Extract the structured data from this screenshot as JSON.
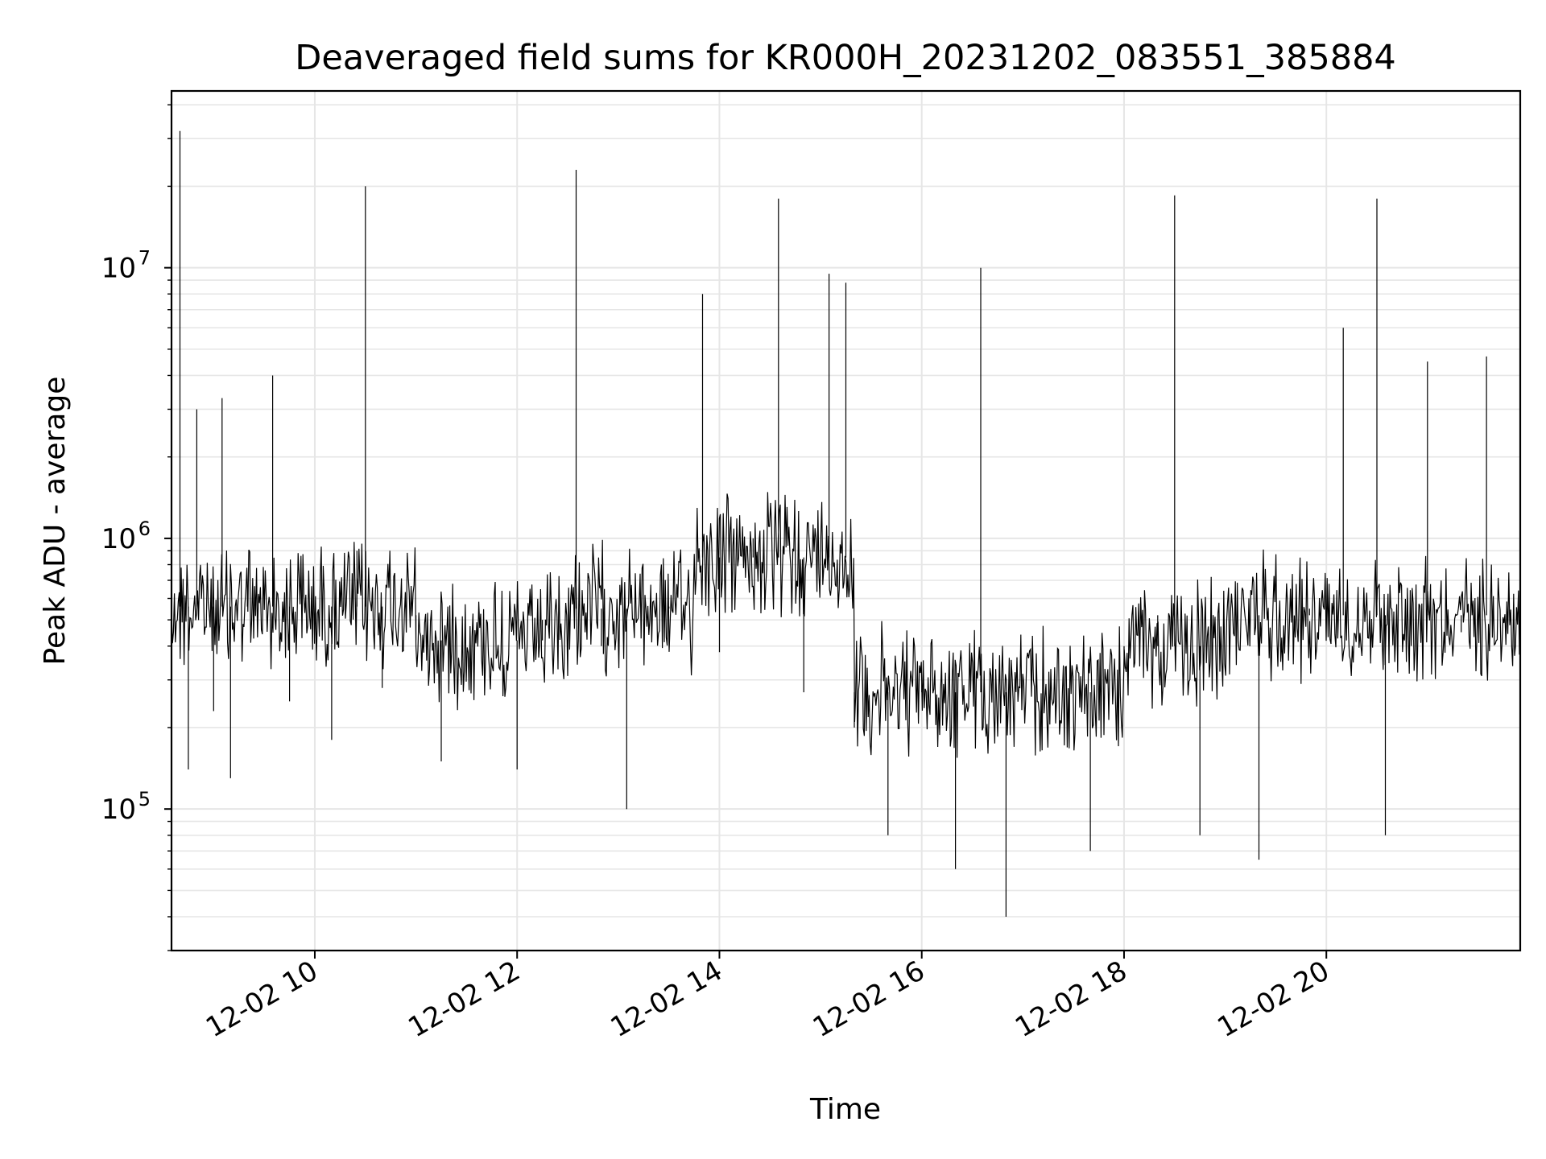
{
  "chart_data": {
    "type": "line",
    "title": "Deaveraged field sums for KR000H_20231202_083551_385884",
    "xlabel": "Time",
    "ylabel": "Peak ADU - average",
    "x_scale": "time",
    "y_scale": "log",
    "xlim": [
      "2023-12-02 08:35",
      "2023-12-02 21:55"
    ],
    "ylim": [
      30000,
      45000000
    ],
    "x_ticks": [
      {
        "time": "2023-12-02 10:00",
        "label": "12-02 10"
      },
      {
        "time": "2023-12-02 12:00",
        "label": "12-02 12"
      },
      {
        "time": "2023-12-02 14:00",
        "label": "12-02 14"
      },
      {
        "time": "2023-12-02 16:00",
        "label": "12-02 16"
      },
      {
        "time": "2023-12-02 18:00",
        "label": "12-02 18"
      },
      {
        "time": "2023-12-02 20:00",
        "label": "12-02 20"
      }
    ],
    "y_ticks": [
      {
        "value": 100000,
        "base": "10",
        "exp": "5"
      },
      {
        "value": 1000000,
        "base": "10",
        "exp": "6"
      },
      {
        "value": 10000000,
        "base": "10",
        "exp": "7"
      }
    ],
    "grid": true,
    "legend": "none",
    "series": [
      {
        "color": "#000000",
        "points": [
          [
            "2023-12-02 08:35",
            380000
          ],
          [
            "2023-12-02 08:40",
            32000000
          ],
          [
            "2023-12-02 08:45",
            140000
          ],
          [
            "2023-12-02 08:50",
            3000000
          ],
          [
            "2023-12-02 09:00",
            230000
          ],
          [
            "2023-12-02 09:05",
            3300000
          ],
          [
            "2023-12-02 09:10",
            130000
          ],
          [
            "2023-12-02 09:20",
            650000
          ],
          [
            "2023-12-02 09:35",
            4000000
          ],
          [
            "2023-12-02 09:45",
            250000
          ],
          [
            "2023-12-02 10:00",
            560000
          ],
          [
            "2023-12-02 10:10",
            180000
          ],
          [
            "2023-12-02 10:25",
            900000
          ],
          [
            "2023-12-02 10:30",
            20000000
          ],
          [
            "2023-12-02 10:40",
            280000
          ],
          [
            "2023-12-02 11:00",
            520000
          ],
          [
            "2023-12-02 11:15",
            150000
          ],
          [
            "2023-12-02 11:30",
            420000
          ],
          [
            "2023-12-02 12:00",
            140000
          ],
          [
            "2023-12-02 12:15",
            500000
          ],
          [
            "2023-12-02 12:35",
            23000000
          ],
          [
            "2023-12-02 12:50",
            400000
          ],
          [
            "2023-12-02 13:05",
            100000
          ],
          [
            "2023-12-02 13:30",
            560000
          ],
          [
            "2023-12-02 13:50",
            8000000
          ],
          [
            "2023-12-02 14:00",
            380000
          ],
          [
            "2023-12-02 14:20",
            1000000
          ],
          [
            "2023-12-02 14:35",
            18000000
          ],
          [
            "2023-12-02 14:50",
            270000
          ],
          [
            "2023-12-02 15:05",
            9500000
          ],
          [
            "2023-12-02 15:15",
            8800000
          ],
          [
            "2023-12-02 15:20",
            200000
          ],
          [
            "2023-12-02 15:40",
            80000
          ],
          [
            "2023-12-02 16:00",
            300000
          ],
          [
            "2023-12-02 16:20",
            60000
          ],
          [
            "2023-12-02 16:35",
            10000000
          ],
          [
            "2023-12-02 16:50",
            40000
          ],
          [
            "2023-12-02 17:15",
            270000
          ],
          [
            "2023-12-02 17:40",
            70000
          ],
          [
            "2023-12-02 18:00",
            330000
          ],
          [
            "2023-12-02 18:20",
            520000
          ],
          [
            "2023-12-02 18:30",
            18500000
          ],
          [
            "2023-12-02 18:45",
            80000
          ],
          [
            "2023-12-02 19:00",
            520000
          ],
          [
            "2023-12-02 19:20",
            65000
          ],
          [
            "2023-12-02 19:50",
            550000
          ],
          [
            "2023-12-02 20:10",
            6000000
          ],
          [
            "2023-12-02 20:30",
            18000000
          ],
          [
            "2023-12-02 20:35",
            80000
          ],
          [
            "2023-12-02 21:00",
            4500000
          ],
          [
            "2023-12-02 21:20",
            450000
          ],
          [
            "2023-12-02 21:35",
            4700000
          ],
          [
            "2023-12-02 21:55",
            520000
          ]
        ]
      }
    ]
  }
}
